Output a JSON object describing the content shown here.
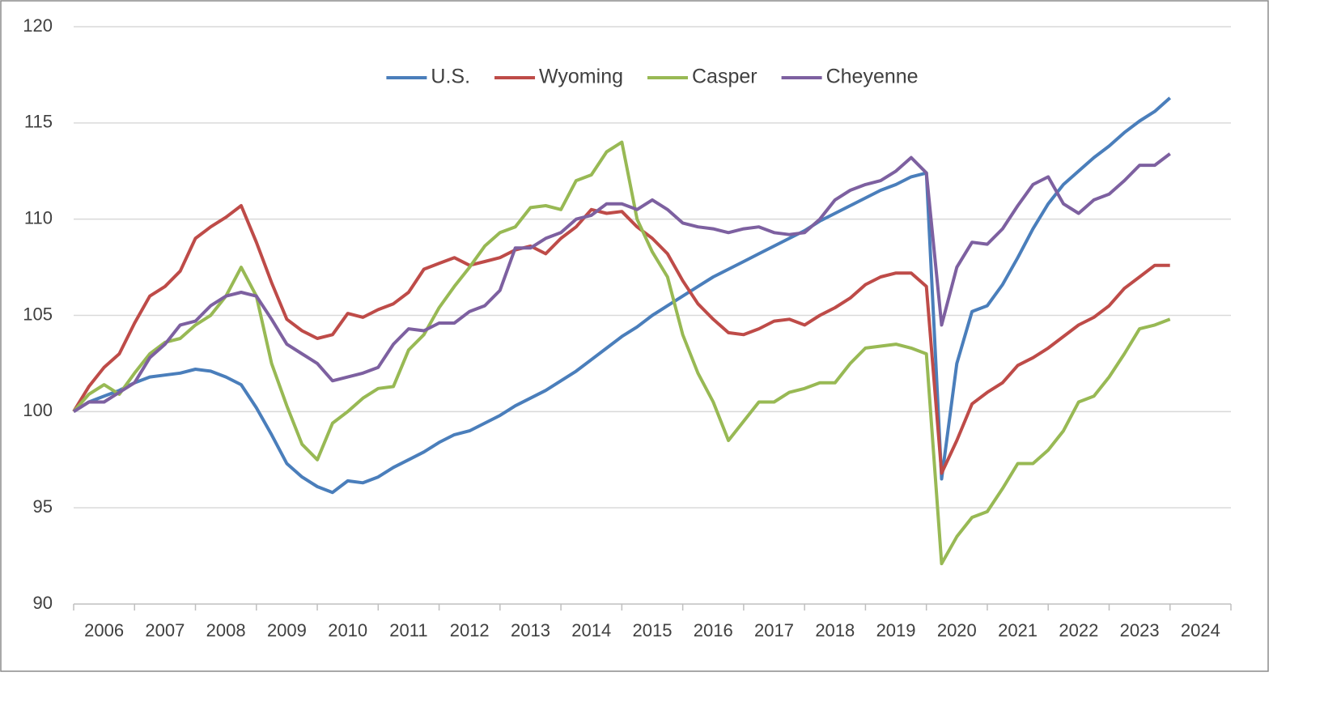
{
  "chart_data": {
    "type": "line",
    "x": [
      2006,
      2006.25,
      2006.5,
      2006.75,
      2007,
      2007.25,
      2007.5,
      2007.75,
      2008,
      2008.25,
      2008.5,
      2008.75,
      2009,
      2009.25,
      2009.5,
      2009.75,
      2010,
      2010.25,
      2010.5,
      2010.75,
      2011,
      2011.25,
      2011.5,
      2011.75,
      2012,
      2012.25,
      2012.5,
      2012.75,
      2013,
      2013.25,
      2013.5,
      2013.75,
      2014,
      2014.25,
      2014.5,
      2014.75,
      2015,
      2015.25,
      2015.5,
      2015.75,
      2016,
      2016.25,
      2016.5,
      2016.75,
      2017,
      2017.25,
      2017.5,
      2017.75,
      2018,
      2018.25,
      2018.5,
      2018.75,
      2019,
      2019.25,
      2019.5,
      2019.75,
      2020,
      2020.25,
      2020.5,
      2020.75,
      2021,
      2021.25,
      2021.5,
      2021.75,
      2022,
      2022.25,
      2022.5,
      2022.75,
      2023,
      2023.25,
      2023.5,
      2023.75,
      2024
    ],
    "series": [
      {
        "name": "U.S.",
        "color": "#4a7ebb",
        "values": [
          100,
          100.5,
          100.8,
          101.1,
          101.5,
          101.8,
          101.9,
          102.0,
          102.2,
          102.1,
          101.8,
          101.4,
          100.2,
          98.8,
          97.3,
          96.6,
          96.1,
          95.8,
          96.4,
          96.3,
          96.6,
          97.1,
          97.5,
          97.9,
          98.4,
          98.8,
          99.0,
          99.4,
          99.8,
          100.3,
          100.7,
          101.1,
          101.6,
          102.1,
          102.7,
          103.3,
          103.9,
          104.4,
          105.0,
          105.5,
          106.0,
          106.5,
          107.0,
          107.4,
          107.8,
          108.2,
          108.6,
          109.0,
          109.4,
          109.9,
          110.3,
          110.7,
          111.1,
          111.5,
          111.8,
          112.2,
          112.4,
          96.5,
          102.5,
          105.2,
          105.5,
          106.6,
          108.0,
          109.5,
          110.8,
          111.8,
          112.5,
          113.2,
          113.8,
          114.5,
          115.1,
          115.6,
          116.3
        ]
      },
      {
        "name": "Wyoming",
        "color": "#be4b48",
        "values": [
          100,
          101.3,
          102.3,
          103.0,
          104.6,
          106.0,
          106.5,
          107.3,
          109.0,
          109.6,
          110.1,
          110.7,
          108.8,
          106.7,
          104.8,
          104.2,
          103.8,
          104.0,
          105.1,
          104.9,
          105.3,
          105.6,
          106.2,
          107.4,
          107.7,
          108.0,
          107.6,
          107.8,
          108.0,
          108.4,
          108.6,
          108.2,
          109.0,
          109.6,
          110.5,
          110.3,
          110.4,
          109.6,
          109.0,
          108.2,
          106.8,
          105.6,
          104.8,
          104.1,
          104.0,
          104.3,
          104.7,
          104.8,
          104.5,
          105.0,
          105.4,
          105.9,
          106.6,
          107.0,
          107.2,
          107.2,
          106.5,
          96.8,
          98.5,
          100.4,
          101.0,
          101.5,
          102.4,
          102.8,
          103.3,
          103.9,
          104.5,
          104.9,
          105.5,
          106.4,
          107.0,
          107.6,
          107.6
        ]
      },
      {
        "name": "Casper",
        "color": "#98b954",
        "values": [
          100,
          100.9,
          101.4,
          100.9,
          102.0,
          103.0,
          103.6,
          103.8,
          104.5,
          105.0,
          106.0,
          107.5,
          106.0,
          102.5,
          100.3,
          98.3,
          97.5,
          99.4,
          100.0,
          100.7,
          101.2,
          101.3,
          103.2,
          104.0,
          105.4,
          106.5,
          107.5,
          108.6,
          109.3,
          109.6,
          110.6,
          110.7,
          110.5,
          112.0,
          112.3,
          113.5,
          114.0,
          110.0,
          108.3,
          107.0,
          104.0,
          102.0,
          100.5,
          98.5,
          99.5,
          100.5,
          100.5,
          101.0,
          101.2,
          101.5,
          101.5,
          102.5,
          103.3,
          103.4,
          103.5,
          103.3,
          103.0,
          92.1,
          93.5,
          94.5,
          94.8,
          96.0,
          97.3,
          97.3,
          98.0,
          99.0,
          100.5,
          100.8,
          101.8,
          103.0,
          104.3,
          104.5,
          104.8
        ]
      },
      {
        "name": "Cheyenne",
        "color": "#7d60a0",
        "values": [
          100,
          100.5,
          100.5,
          101.0,
          101.5,
          102.8,
          103.5,
          104.5,
          104.7,
          105.5,
          106.0,
          106.2,
          106.0,
          104.8,
          103.5,
          103.0,
          102.5,
          101.6,
          101.8,
          102.0,
          102.3,
          103.5,
          104.3,
          104.2,
          104.6,
          104.6,
          105.2,
          105.5,
          106.3,
          108.5,
          108.5,
          109.0,
          109.3,
          110.0,
          110.2,
          110.8,
          110.8,
          110.5,
          111.0,
          110.5,
          109.8,
          109.6,
          109.5,
          109.3,
          109.5,
          109.6,
          109.3,
          109.2,
          109.3,
          110.0,
          111.0,
          111.5,
          111.8,
          112.0,
          112.5,
          113.2,
          112.4,
          104.5,
          107.5,
          108.8,
          108.7,
          109.5,
          110.7,
          111.8,
          112.2,
          110.8,
          110.3,
          111.0,
          111.3,
          112.0,
          112.8,
          112.8,
          113.4
        ]
      }
    ],
    "xlim": [
      2006,
      2025
    ],
    "xticks": [
      {
        "value": 2006.5,
        "label": "2006"
      },
      {
        "value": 2007.5,
        "label": "2007"
      },
      {
        "value": 2008.5,
        "label": "2008"
      },
      {
        "value": 2009.5,
        "label": "2009"
      },
      {
        "value": 2010.5,
        "label": "2010"
      },
      {
        "value": 2011.5,
        "label": "2011"
      },
      {
        "value": 2012.5,
        "label": "2012"
      },
      {
        "value": 2013.5,
        "label": "2013"
      },
      {
        "value": 2014.5,
        "label": "2014"
      },
      {
        "value": 2015.5,
        "label": "2015"
      },
      {
        "value": 2016.5,
        "label": "2016"
      },
      {
        "value": 2017.5,
        "label": "2017"
      },
      {
        "value": 2018.5,
        "label": "2018"
      },
      {
        "value": 2019.5,
        "label": "2019"
      },
      {
        "value": 2020.5,
        "label": "2020"
      },
      {
        "value": 2021.5,
        "label": "2021"
      },
      {
        "value": 2022.5,
        "label": "2022"
      },
      {
        "value": 2023.5,
        "label": "2023"
      },
      {
        "value": 2024.5,
        "label": "2024"
      }
    ],
    "ylim": [
      90,
      120
    ],
    "yticks": [
      90,
      95,
      100,
      105,
      110,
      115,
      120
    ],
    "grid": true,
    "legend": "top"
  }
}
